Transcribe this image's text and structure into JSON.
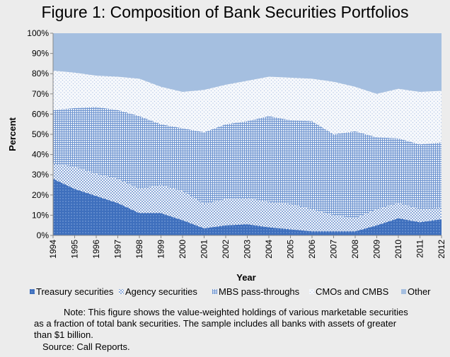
{
  "chart_data": {
    "type": "area",
    "stacked": true,
    "title": "Figure 1:  Composition of Bank Securities Portfolios",
    "xlabel": "Year",
    "ylabel": "Percent",
    "ylim": [
      0,
      100
    ],
    "yticks": [
      "0%",
      "10%",
      "20%",
      "30%",
      "40%",
      "50%",
      "60%",
      "70%",
      "80%",
      "90%",
      "100%"
    ],
    "categories": [
      "1994",
      "1995",
      "1996",
      "1997",
      "1998",
      "1999",
      "2000",
      "2001",
      "2002",
      "2003",
      "2004",
      "2005",
      "2006",
      "2007",
      "2008",
      "2009",
      "2010",
      "2011",
      "2012"
    ],
    "series": [
      {
        "name": "Treasury securities",
        "pattern": "treasury",
        "values": [
          28,
          23,
          19.5,
          16,
          11,
          11,
          7.5,
          3.5,
          5,
          5.5,
          4,
          3,
          2,
          2,
          2,
          5,
          8.5,
          6.5,
          8
        ]
      },
      {
        "name": "Agency securities",
        "pattern": "agency",
        "values": [
          7.5,
          11,
          11,
          12,
          12,
          14,
          14.5,
          12,
          13,
          13,
          12.5,
          12.5,
          11,
          8,
          6.5,
          8,
          7.5,
          6.5,
          5.5
        ]
      },
      {
        "name": "MBS pass-throughs",
        "pattern": "mbs",
        "values": [
          26.5,
          29,
          33,
          34,
          36,
          30,
          31,
          35.5,
          37,
          38,
          42.5,
          41.5,
          43.5,
          40,
          43,
          35.5,
          32,
          32,
          32.5
        ]
      },
      {
        "name": "CMOs and CMBS",
        "pattern": "cmo",
        "values": [
          19.5,
          17.5,
          15.5,
          16.5,
          18.5,
          18.5,
          18,
          21,
          19.5,
          20,
          19.5,
          21,
          21,
          26,
          22,
          21.5,
          24.5,
          26,
          25.5
        ]
      },
      {
        "name": "Other",
        "pattern": "other",
        "values": [
          18.5,
          19.5,
          21,
          21.5,
          22.5,
          26.5,
          29,
          28,
          25.5,
          23.5,
          21.5,
          22,
          22.5,
          24,
          26.5,
          30,
          27.5,
          29,
          28.5
        ]
      }
    ],
    "legend_position": "bottom"
  },
  "note": {
    "line1": "Note:  This figure shows the value-weighted holdings of various marketable securities",
    "line2": "as a fraction of total bank securities.  The sample includes all banks with assets of greater",
    "line3": "than $1 billion.",
    "source": "Source:  Call Reports."
  }
}
